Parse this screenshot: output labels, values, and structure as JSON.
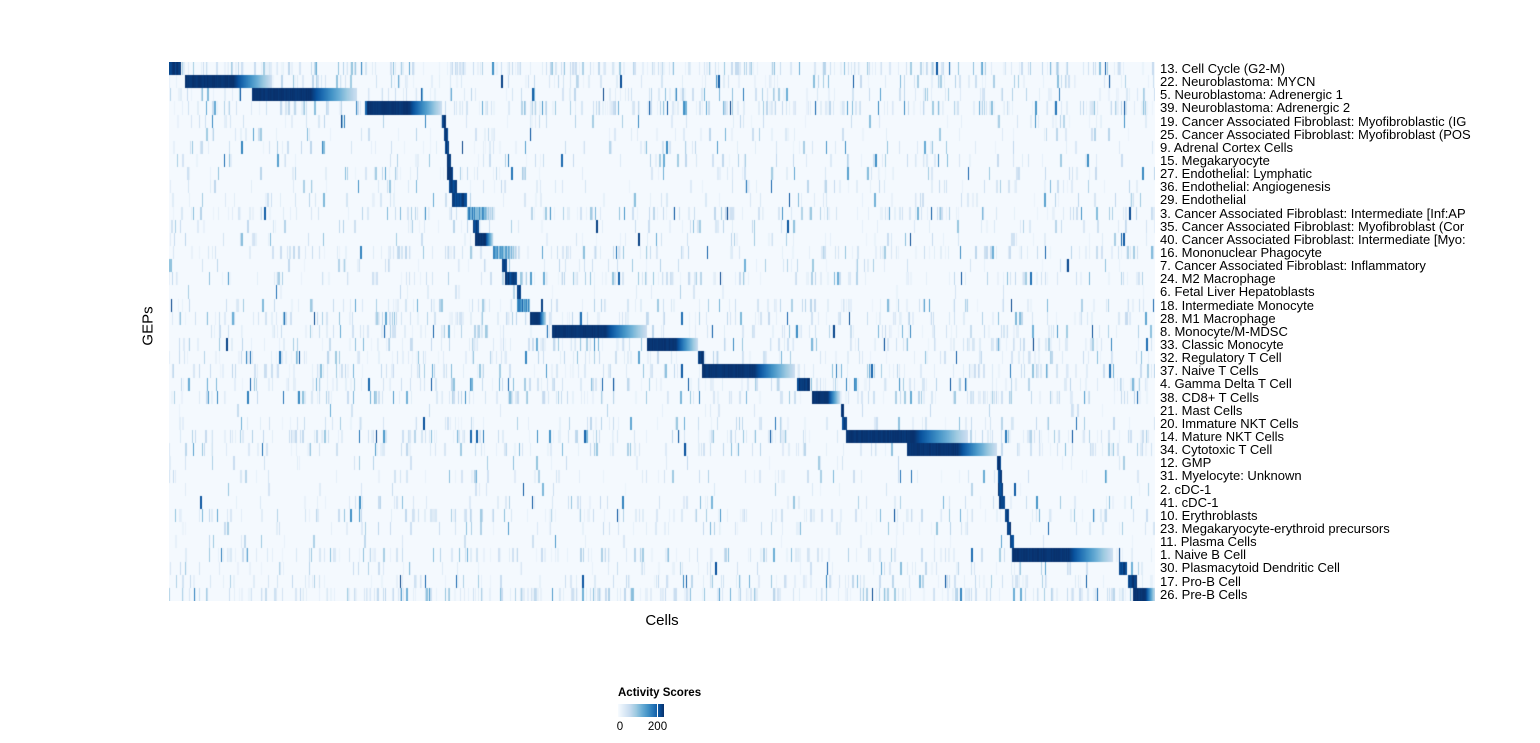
{
  "figure": {
    "xlabel": "Cells",
    "ylabel": "GEPs",
    "legend": {
      "title": "Activity Scores",
      "min_label": "0",
      "tick_label": "200"
    }
  },
  "chart_data": {
    "type": "heatmap",
    "title": "",
    "xlabel": "Cells",
    "ylabel": "GEPs",
    "x_axis_note": "individual cells as columns (~990 shown), no tick labels",
    "n_rows": 41,
    "legend": {
      "title": "Activity Scores",
      "min": 0,
      "tick_value": 200,
      "tick_position_frac": 0.84
    },
    "colormap": {
      "name": "Blues",
      "stops": [
        "#f7fbff",
        "#deebf7",
        "#c6dbef",
        "#9ecae1",
        "#6baed6",
        "#4292c6",
        "#2171b5",
        "#08519c",
        "#08306b"
      ]
    },
    "rows": [
      {
        "label": "13. Cell Cycle (G2-M)",
        "block": [
          0.0,
          0.012
        ],
        "noise": 3
      },
      {
        "label": "22. Neuroblastoma: MYCN",
        "block": [
          0.016,
          0.104
        ],
        "noise": 2
      },
      {
        "label": "5. Neuroblastoma: Adrenergic 1",
        "block": [
          0.084,
          0.191
        ],
        "noise": 2
      },
      {
        "label": "39. Neuroblastoma: Adrenergic 2",
        "block": [
          0.201,
          0.277
        ],
        "noise": 3
      },
      {
        "label": "19. Cancer Associated Fibroblast: Myofibroblastic (IG",
        "block": [
          0.2765,
          0.281
        ],
        "noise": 1
      },
      {
        "label": "25. Cancer Associated Fibroblast: Myofibroblast (POS",
        "block": [
          0.2785,
          0.2825
        ],
        "noise": 1
      },
      {
        "label": "9. Adrenal Cortex Cells",
        "block": [
          0.28,
          0.284
        ],
        "noise": 1
      },
      {
        "label": "15. Megakaryocyte",
        "block": [
          0.2815,
          0.2855
        ],
        "noise": 1
      },
      {
        "label": "27. Endothelial: Lymphatic",
        "block": [
          0.282,
          0.288
        ],
        "noise": 1
      },
      {
        "label": "36. Endothelial: Angiogenesis",
        "block": [
          0.2835,
          0.2925
        ],
        "noise": 1
      },
      {
        "label": "29. Endothelial",
        "block": [
          0.287,
          0.3025
        ],
        "noise": 1
      },
      {
        "label": "3. Cancer Associated Fibroblast: Intermediate [Inf:AP",
        "block": [
          0.302,
          0.328
        ],
        "noise": 2,
        "peak": 0.8,
        "soft": true
      },
      {
        "label": "35. Cancer Associated Fibroblast: Myofibroblast (Cor",
        "block": [
          0.308,
          0.3145
        ],
        "noise": 1
      },
      {
        "label": "40. Cancer Associated Fibroblast: Intermediate [Myo:",
        "block": [
          0.31,
          0.329
        ],
        "noise": 1
      },
      {
        "label": "16. Mononuclear Phagocyte",
        "block": [
          0.329,
          0.353
        ],
        "noise": 2,
        "peak": 0.75,
        "soft": true
      },
      {
        "label": "7. Cancer Associated Fibroblast: Inflammatory",
        "block": [
          0.338,
          0.3425
        ],
        "noise": 1
      },
      {
        "label": "24. M2 Macrophage",
        "block": [
          0.341,
          0.353
        ],
        "noise": 2
      },
      {
        "label": "6. Fetal Liver Hepatoblasts",
        "block": [
          0.3525,
          0.357
        ],
        "noise": 0
      },
      {
        "label": "18. Intermediate Monocyte",
        "block": [
          0.353,
          0.366
        ],
        "noise": 2,
        "peak": 0.85,
        "soft": true
      },
      {
        "label": "28. M1 Macrophage",
        "block": [
          0.366,
          0.3825
        ],
        "noise": 2
      },
      {
        "label": "8. Monocyte/M-MDSC",
        "block": [
          0.388,
          0.485
        ],
        "noise": 2
      },
      {
        "label": "33. Classic Monocyte",
        "block": [
          0.485,
          0.537
        ],
        "noise": 2
      },
      {
        "label": "32. Regulatory T Cell",
        "block": [
          0.5365,
          0.5425
        ],
        "noise": 2
      },
      {
        "label": "37. Naive T Cells",
        "block": [
          0.541,
          0.635
        ],
        "noise": 2
      },
      {
        "label": "4. Gamma Delta T Cell",
        "block": [
          0.6365,
          0.65
        ],
        "noise": 2
      },
      {
        "label": "38. CD8+ T Cells",
        "block": [
          0.652,
          0.681
        ],
        "noise": 2
      },
      {
        "label": "21. Mast Cells",
        "block": [
          0.6815,
          0.685
        ],
        "noise": 0
      },
      {
        "label": "20. Immature NKT Cells",
        "block": [
          0.683,
          0.6875
        ],
        "noise": 1
      },
      {
        "label": "14. Mature NKT Cells",
        "block": [
          0.687,
          0.81
        ],
        "noise": 2
      },
      {
        "label": "34. Cytotoxic T Cell",
        "block": [
          0.748,
          0.84
        ],
        "noise": 2
      },
      {
        "label": "12. GMP",
        "block": [
          0.84,
          0.8435
        ],
        "noise": 0
      },
      {
        "label": "31. Myelocyte: Unknown",
        "block": [
          0.841,
          0.845
        ],
        "noise": 1
      },
      {
        "label": "2. cDC-1",
        "block": [
          0.841,
          0.8455
        ],
        "noise": 0
      },
      {
        "label": "41. cDC-1",
        "block": [
          0.842,
          0.848
        ],
        "noise": 1
      },
      {
        "label": "10. Erythroblasts",
        "block": [
          0.848,
          0.8515
        ],
        "noise": 2
      },
      {
        "label": "23. Megakaryocyte-erythroid precursors",
        "block": [
          0.85,
          0.854
        ],
        "noise": 1
      },
      {
        "label": "11. Plasma Cells",
        "block": [
          0.853,
          0.857
        ],
        "noise": 0
      },
      {
        "label": "1. Naive B Cell",
        "block": [
          0.855,
          0.957
        ],
        "noise": 2
      },
      {
        "label": "30. Plasmacytoid Dendritic Cell",
        "block": [
          0.963,
          0.972
        ],
        "noise": 1
      },
      {
        "label": "17. Pro-B Cell",
        "block": [
          0.973,
          0.9815
        ],
        "noise": 2
      },
      {
        "label": "26. Pre-B Cells",
        "block": [
          0.978,
          1.0
        ],
        "noise": 3
      }
    ]
  }
}
